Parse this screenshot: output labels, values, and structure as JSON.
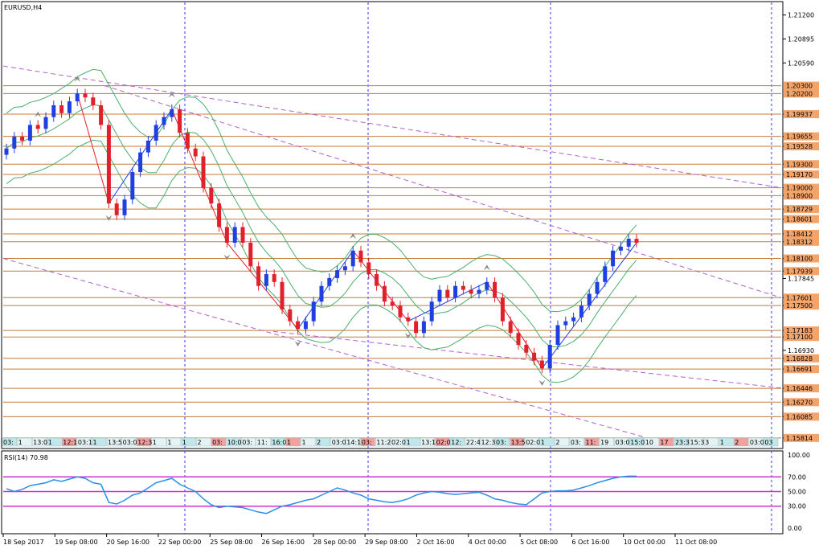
{
  "title": "EURUSD,H4",
  "rsi_label": "RSI(14) 70.98",
  "colors": {
    "up": "#1f3fe0",
    "down": "#e0202a",
    "level_line": "#c47a3a",
    "tag_bg": "#f3a46b",
    "trend": "#b060d0",
    "bands": "#4caf6a",
    "rsi_line": "#2b8fe6",
    "rsi_levels": "#cc33cc",
    "grid_v": "#3a3aff"
  },
  "chart_data": {
    "type": "candlestick",
    "symbol": "EURUSD",
    "timeframe": "H4",
    "ylim": [
      1.157,
      1.2135
    ],
    "y_ticks": [
      1.212,
      1.20895,
      1.2059,
      1.19937,
      1.19655,
      1.19528,
      1.193,
      1.1917,
      1.19,
      1.189,
      1.18729,
      1.18601,
      1.18412,
      1.18312,
      1.181,
      1.17939,
      1.17845,
      1.17601,
      1.175,
      1.17183,
      1.171,
      1.1693,
      1.16828,
      1.16691,
      1.16446,
      1.1627,
      1.16085,
      1.15814
    ],
    "y_tick_labels": [
      "1.21200",
      "1.20895",
      "1.20590",
      "1.19937",
      "1.19655",
      "1.19528",
      "1.19300",
      "1.19170",
      "1.19000",
      "1.18900",
      "1.18729",
      "1.18601",
      "1.18412",
      "1.18312",
      "1.18100",
      "1.17939",
      "1.17845",
      "1.17601",
      "1.17500",
      "1.17183",
      "1.17100",
      "1.16930",
      "1.16828",
      "1.16691",
      "1.16446",
      "1.16270",
      "1.16085",
      "1.15814"
    ],
    "levels": [
      1.203,
      1.202,
      1.19937,
      1.19655,
      1.19528,
      1.193,
      1.1917,
      1.19,
      1.189,
      1.18729,
      1.18601,
      1.18412,
      1.18312,
      1.181,
      1.17939,
      1.17601,
      1.175,
      1.17183,
      1.171,
      1.16828,
      1.16691,
      1.16446,
      1.1627,
      1.16085,
      1.15814
    ],
    "level_labels": [
      "1.20300",
      "1.20200",
      "1.19937",
      "1.19655",
      "1.19528",
      "1.19300",
      "1.19170",
      "1.19000",
      "1.18900",
      "1.18729",
      "1.18601",
      "1.18412",
      "1.18312",
      "1.18100",
      "1.17939",
      "1.17601",
      "1.17500",
      "1.17183",
      "1.17100",
      "1.16828",
      "1.16691",
      "1.16446",
      "1.16270",
      "1.16085",
      "1.15814"
    ],
    "x_labels": [
      "18 Sep 2017",
      "19 Sep 08:00",
      "20 Sep 16:00",
      "22 Sep 00:00",
      "25 Sep 08:00",
      "26 Sep 16:00",
      "28 Sep 00:00",
      "29 Sep 08:00",
      "2 Oct 16:00",
      "4 Oct 00:00",
      "5 Oct 08:00",
      "6 Oct 16:00",
      "10 Oct 00:00",
      "11 Oct 08:00"
    ],
    "period_separators": [
      "20 Sep",
      "29 Sep",
      "6 Oct",
      "11 Oct"
    ],
    "time_tags": [
      "03:",
      "1",
      "13:00",
      "1",
      "12:1",
      "03:1",
      "1",
      "13:51",
      "03:00",
      "12:39",
      "1",
      "1",
      "1",
      "2",
      "03:",
      "10:00",
      "03:",
      "11:",
      "16:00",
      "1",
      "1",
      "2",
      "03:00",
      "14:1",
      "03:",
      "11:28",
      "02:0",
      "1",
      "13:15",
      "02:01",
      "12:",
      "22:43",
      "12:37",
      "03:",
      "13:54",
      "02:01",
      "1",
      "2",
      "03:",
      "11:",
      "19",
      "03:00",
      "15:09",
      "10",
      "17",
      "23:30",
      "15:30",
      "3",
      "1",
      "2",
      "03:00",
      "03"
    ],
    "close_series": [
      1.195,
      1.1965,
      1.196,
      1.198,
      1.1975,
      1.199,
      1.2005,
      1.1995,
      1.201,
      1.202,
      1.2015,
      1.2005,
      1.198,
      1.188,
      1.1865,
      1.1885,
      1.192,
      1.1945,
      1.196,
      1.198,
      1.199,
      1.2,
      1.197,
      1.195,
      1.194,
      1.19,
      1.188,
      1.185,
      1.183,
      1.185,
      1.183,
      1.18,
      1.1775,
      1.179,
      1.178,
      1.1745,
      1.173,
      1.172,
      1.173,
      1.1755,
      1.1775,
      1.1785,
      1.1795,
      1.18,
      1.182,
      1.1805,
      1.179,
      1.1775,
      1.1755,
      1.175,
      1.1735,
      1.173,
      1.1715,
      1.173,
      1.1755,
      1.177,
      1.176,
      1.1775,
      1.177,
      1.1765,
      1.177,
      1.178,
      1.176,
      1.173,
      1.1715,
      1.17,
      1.169,
      1.168,
      1.167,
      1.17,
      1.1725,
      1.173,
      1.1735,
      1.175,
      1.1765,
      1.178,
      1.18,
      1.182,
      1.1825,
      1.1835,
      1.183
    ],
    "rsi": {
      "label": "RSI(14) 70.98",
      "ylim": [
        0,
        100
      ],
      "ticks": [
        100,
        70,
        50,
        30,
        0
      ],
      "tick_labels": [
        "100.00",
        "70.00",
        "50.00",
        "30.00",
        "0.00"
      ],
      "levels": [
        70,
        50,
        30
      ],
      "values": [
        54,
        50,
        53,
        58,
        60,
        62,
        66,
        64,
        67,
        70,
        68,
        62,
        60,
        35,
        33,
        38,
        45,
        48,
        55,
        62,
        65,
        68,
        60,
        55,
        50,
        40,
        32,
        28,
        30,
        29,
        28,
        25,
        22,
        20,
        25,
        30,
        32,
        35,
        38,
        40,
        45,
        50,
        55,
        52,
        48,
        45,
        40,
        38,
        36,
        35,
        37,
        40,
        45,
        48,
        50,
        49,
        47,
        46,
        47,
        48,
        49,
        45,
        40,
        38,
        35,
        33,
        32,
        40,
        48,
        50,
        51,
        51,
        52,
        55,
        58,
        62,
        65,
        68,
        70,
        71,
        70.98
      ]
    }
  }
}
